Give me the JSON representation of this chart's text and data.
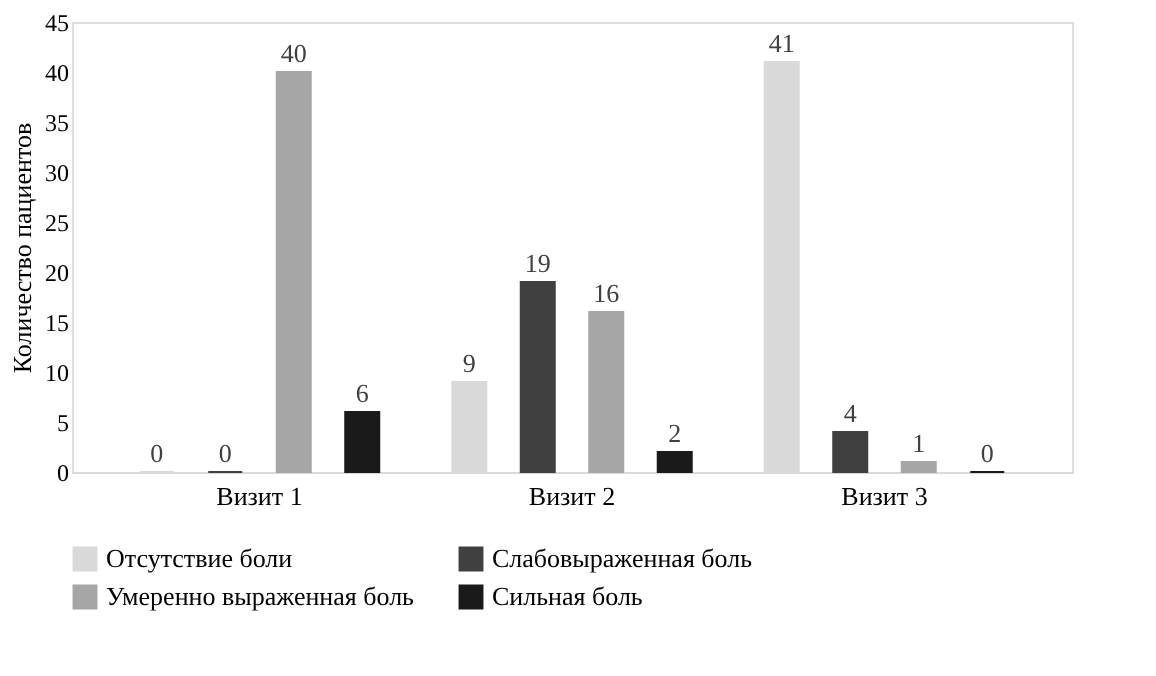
{
  "chart_data": {
    "type": "bar",
    "ylabel": "Количество пациентов",
    "categories": [
      "Визит 1",
      "Визит 2",
      "Визит 3"
    ],
    "series": [
      {
        "name": "Отсутствие боли",
        "color": "#d9d9d9",
        "values": [
          0,
          9,
          41
        ]
      },
      {
        "name": "Слабовыраженная боль",
        "color": "#404040",
        "values": [
          0,
          19,
          4
        ]
      },
      {
        "name": "Умеренно выраженная боль",
        "color": "#a6a6a6",
        "values": [
          40,
          16,
          1
        ]
      },
      {
        "name": "Сильная боль",
        "color": "#1a1a1a",
        "values": [
          6,
          2,
          0
        ]
      }
    ],
    "ylim": [
      0,
      45
    ],
    "yticks": [
      0,
      5,
      10,
      15,
      20,
      25,
      30,
      35,
      40,
      45
    ],
    "grid": false,
    "legend": "bottom",
    "data_labels": true
  }
}
